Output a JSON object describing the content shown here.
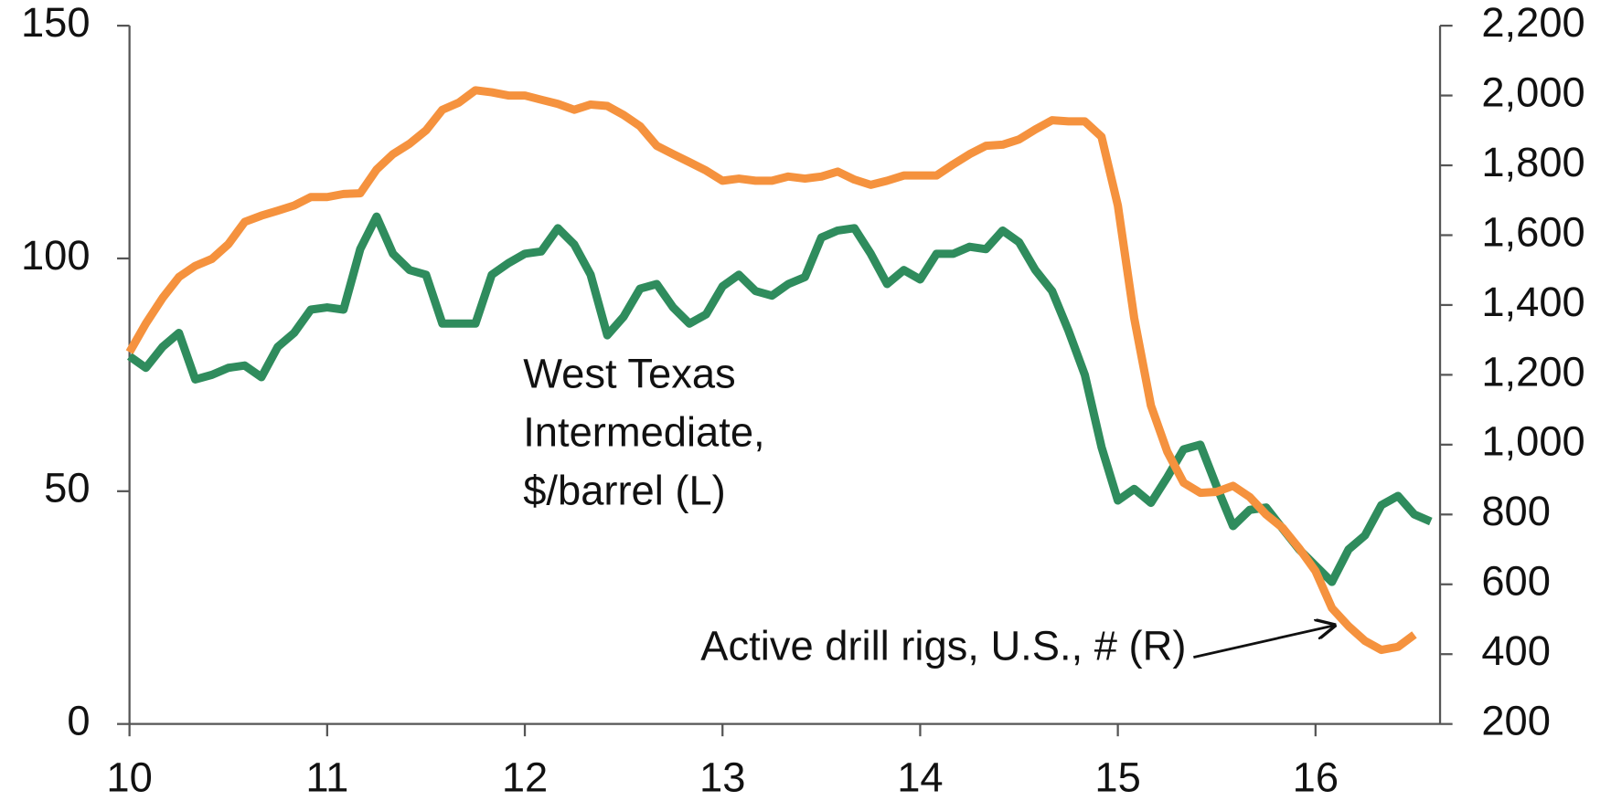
{
  "chart_data": {
    "type": "line",
    "x": [
      10,
      10.083,
      10.167,
      10.25,
      10.333,
      10.417,
      10.5,
      10.583,
      10.667,
      10.75,
      10.833,
      10.917,
      11,
      11.083,
      11.167,
      11.25,
      11.333,
      11.417,
      11.5,
      11.583,
      11.667,
      11.75,
      11.833,
      11.917,
      12,
      12.083,
      12.167,
      12.25,
      12.333,
      12.417,
      12.5,
      12.583,
      12.667,
      12.75,
      12.833,
      12.917,
      13,
      13.083,
      13.167,
      13.25,
      13.333,
      13.417,
      13.5,
      13.583,
      13.667,
      13.75,
      13.833,
      13.917,
      14,
      14.083,
      14.167,
      14.25,
      14.333,
      14.417,
      14.5,
      14.583,
      14.667,
      14.75,
      14.833,
      14.917,
      15,
      15.083,
      15.167,
      15.25,
      15.333,
      15.417,
      15.5,
      15.583,
      15.667,
      15.75,
      15.833,
      15.917,
      16,
      16.083,
      16.167,
      16.25,
      16.333,
      16.417,
      16.5,
      16.583
    ],
    "series": [
      {
        "color": "#2f8c5d",
        "values": [
          79,
          76.5,
          81,
          84,
          74,
          75,
          76.5,
          77,
          74.5,
          81,
          84,
          89,
          89.5,
          89,
          102,
          109,
          101,
          97.5,
          96.5,
          86,
          86,
          86,
          96.5,
          99,
          101,
          101.5,
          106.5,
          103,
          96.5,
          83.5,
          87.5,
          93.5,
          94.5,
          89.5,
          86,
          88,
          94,
          96.5,
          93,
          92,
          94.5,
          96,
          104.5,
          106,
          106.5,
          101,
          94.5,
          97.5,
          95.5,
          101,
          101,
          102.5,
          102,
          106,
          103.5,
          97.5,
          93,
          84.5,
          75,
          59.5,
          48,
          50.5,
          47.5,
          53,
          59,
          60,
          51,
          42.5,
          46,
          46.5,
          42,
          37.5,
          34,
          30.5,
          37.5,
          40.5,
          47,
          49,
          45,
          43.5
        ]
      },
      {
        "color": "#f5923e",
        "axis": "y2",
        "values": [
          1265,
          1347,
          1420,
          1480,
          1512,
          1532,
          1574,
          1638,
          1656,
          1670,
          1685,
          1709,
          1709,
          1718,
          1720,
          1788,
          1832,
          1862,
          1900,
          1959,
          1980,
          2015,
          2009,
          2000,
          2000,
          1988,
          1976,
          1959,
          1974,
          1970,
          1944,
          1912,
          1856,
          1832,
          1809,
          1785,
          1756,
          1762,
          1756,
          1756,
          1768,
          1762,
          1768,
          1782,
          1759,
          1744,
          1756,
          1771,
          1771,
          1771,
          1803,
          1832,
          1856,
          1859,
          1874,
          1903,
          1929,
          1926,
          1926,
          1882,
          1685,
          1362,
          1112,
          980,
          891,
          862,
          865,
          882,
          850,
          800,
          762,
          703,
          638,
          532,
          480,
          438,
          412,
          421,
          456,
          null
        ]
      }
    ],
    "annotations": [
      {
        "lines": [
          "West Texas",
          "Intermediate,",
          "$/barrel (L)"
        ]
      },
      {
        "lines": [
          "Active drill rigs, U.S., # (R)"
        ]
      }
    ],
    "xlim": [
      10,
      16.63
    ],
    "xticks": [
      10,
      11,
      12,
      13,
      14,
      15,
      16
    ],
    "ylim": [
      0,
      150
    ],
    "yticks": [
      0,
      50,
      100,
      150
    ],
    "y2lim": [
      200,
      2200
    ],
    "y2ticks": [
      200,
      400,
      600,
      800,
      {
        "value": 1000,
        "label": "1,000"
      },
      {
        "value": 1200,
        "label": "1,200"
      },
      {
        "value": 1400,
        "label": "1,400"
      },
      {
        "value": 1600,
        "label": "1,600"
      },
      {
        "value": 1800,
        "label": "1,800"
      },
      {
        "value": 2000,
        "label": "2,000"
      },
      {
        "value": 2200,
        "label": "2,200"
      }
    ],
    "grid": false
  }
}
